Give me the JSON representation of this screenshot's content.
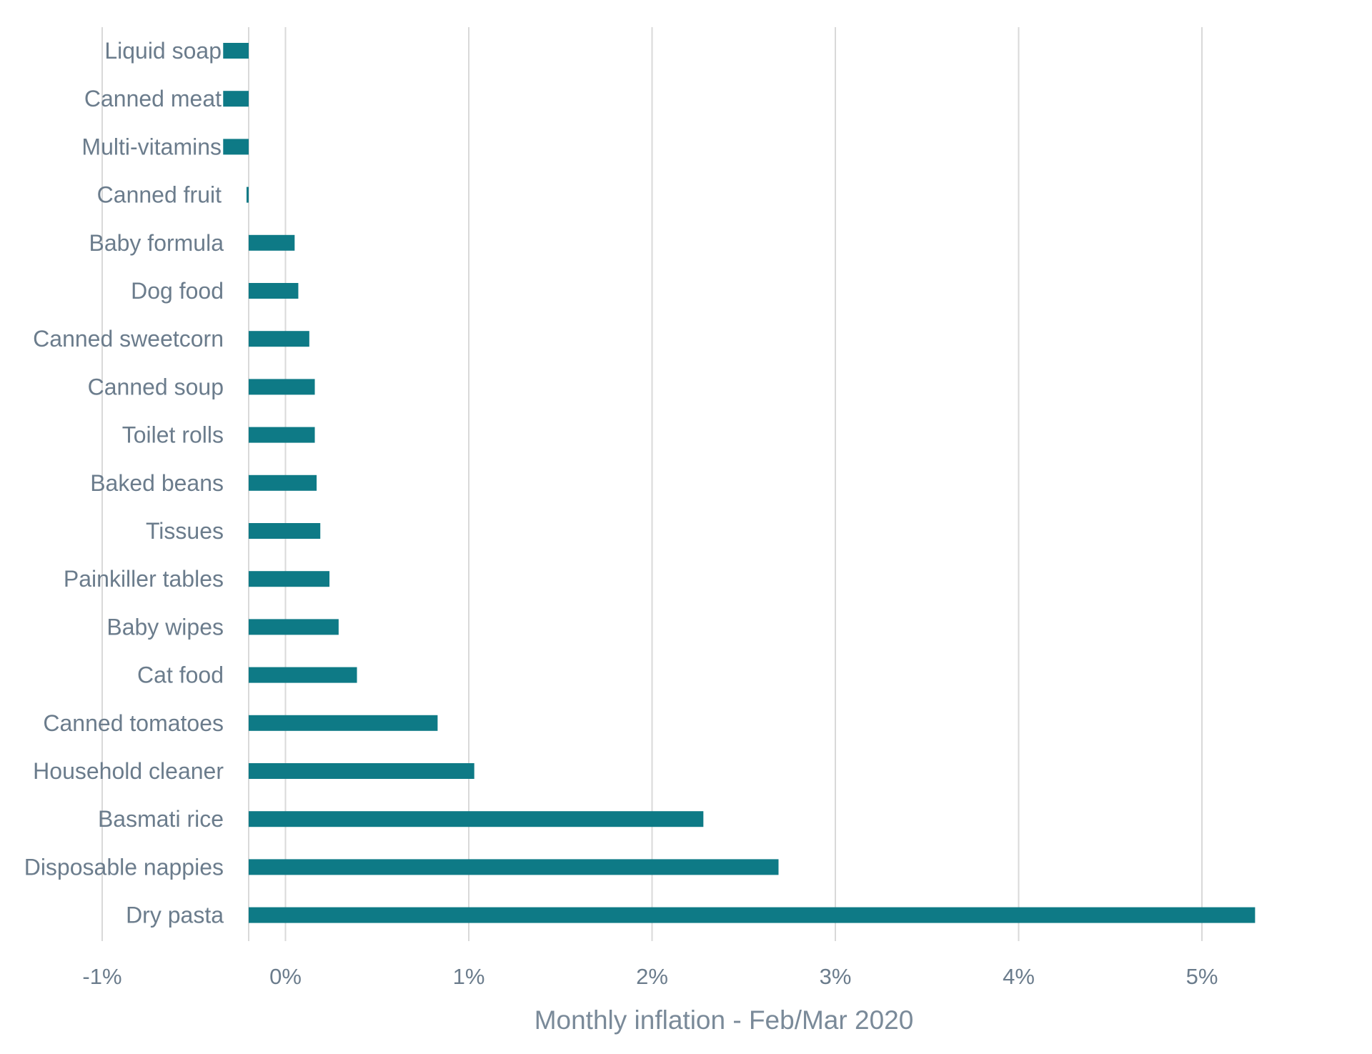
{
  "chart_data": {
    "type": "bar",
    "orientation": "horizontal",
    "xlabel": "Monthly inflation - Feb/Mar 2020",
    "xlim": [
      -1,
      5.4
    ],
    "xticks": [
      -1,
      0,
      1,
      2,
      3,
      4,
      5
    ],
    "xtick_labels": [
      "-1%",
      "0%",
      "1%",
      "2%",
      "3%",
      "4%",
      "5%"
    ],
    "grid": "vertical",
    "bar_color": "#0e7a86",
    "categories": [
      "Liquid soap",
      "Canned meat",
      "Multi-vitamins",
      "Canned fruit",
      "Baby formula",
      "Dog food",
      "Canned sweetcorn",
      "Canned soup",
      "Toilet rolls",
      "Baked beans",
      "Tissues",
      "Painkiller tables",
      "Baby wipes",
      "Cat food",
      "Canned tomatoes",
      "Household cleaner",
      "Basmati rice",
      "Disposable nappies",
      "Dry pasta"
    ],
    "values": [
      -0.34,
      -0.34,
      -0.34,
      -0.03,
      0.05,
      0.07,
      0.13,
      0.16,
      0.16,
      0.17,
      0.19,
      0.24,
      0.29,
      0.39,
      0.83,
      1.03,
      2.28,
      2.69,
      5.29
    ]
  }
}
